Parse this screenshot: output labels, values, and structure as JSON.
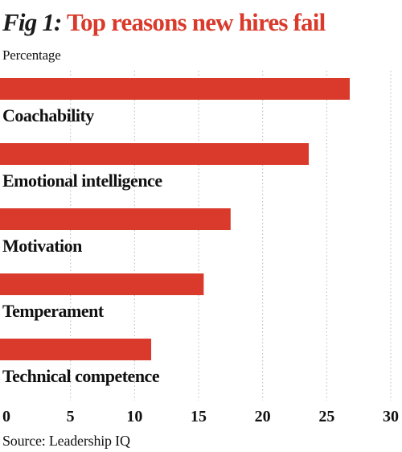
{
  "header": {
    "fig_label": "Fig 1:",
    "title": "Top reasons new hires fail",
    "subtitle": "Percentage"
  },
  "footer": {
    "source": "Source: Leadership IQ"
  },
  "colors": {
    "bar": "#d93a2b",
    "text": "#111111",
    "grid": "#b8b8b8"
  },
  "chart_data": {
    "type": "bar",
    "orientation": "horizontal",
    "title": "Top reasons new hires fail",
    "subtitle": "Percentage",
    "categories": [
      "Coachability",
      "Emotional intelligence",
      "Motivation",
      "Temperament",
      "Technical competence"
    ],
    "values": [
      26.8,
      23.6,
      17.5,
      15.4,
      11.3
    ],
    "xlim": [
      0,
      30
    ],
    "xticks": [
      0,
      5,
      10,
      15,
      20,
      25,
      30
    ],
    "grid": true,
    "grid_style": "dotted vertical",
    "legend": false,
    "source": "Source: Leadership IQ"
  }
}
